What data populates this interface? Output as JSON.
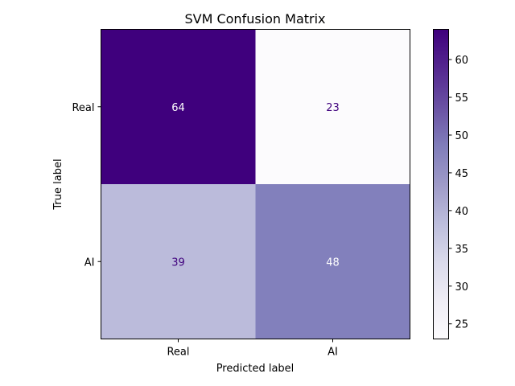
{
  "chart_data": {
    "type": "heatmap",
    "title": "SVM Confusion Matrix",
    "xlabel": "Predicted label",
    "ylabel": "True label",
    "x_categories": [
      "Real",
      "AI"
    ],
    "y_categories": [
      "Real",
      "AI"
    ],
    "values": [
      [
        64,
        23
      ],
      [
        39,
        48
      ]
    ],
    "colormap": "Purples",
    "color_range": [
      23,
      64
    ],
    "colorbar_ticks": [
      "25",
      "30",
      "35",
      "40",
      "45",
      "50",
      "55",
      "60"
    ],
    "colors": {
      "cell_real_real": "#3f007d",
      "cell_real_ai": "#fcfbfd",
      "cell_ai_real": "#bbbbdb",
      "cell_ai_ai": "#8280bc",
      "text_on_dark": "#ffffff",
      "text_on_light": "#3f007d"
    }
  }
}
